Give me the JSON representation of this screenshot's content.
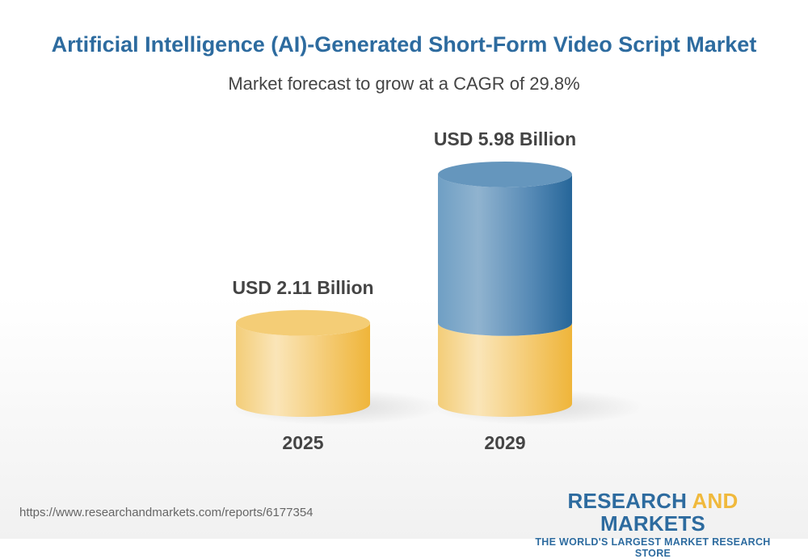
{
  "title": "Artificial Intelligence (AI)-Generated Short-Form Video Script Market",
  "subtitle": "Market forecast to grow at a CAGR of 29.8%",
  "chart_data": {
    "type": "bar",
    "style": "3d-cylinder",
    "categories": [
      "2025",
      "2029"
    ],
    "values": [
      2.11,
      5.98
    ],
    "data_labels": [
      "USD 2.11 Billion",
      "USD 5.98 Billion"
    ],
    "unit": "USD Billion",
    "cagr": "29.8%",
    "colors": {
      "base": "#f2c15a",
      "growth": "#2f6d9f"
    }
  },
  "footer": {
    "url": "https://www.researchandmarkets.com/reports/6177354",
    "logo_part1": "RESEARCH ",
    "logo_and": "AND",
    "logo_part2": " MARKETS",
    "logo_tagline": "THE WORLD'S LARGEST MARKET RESEARCH STORE"
  }
}
